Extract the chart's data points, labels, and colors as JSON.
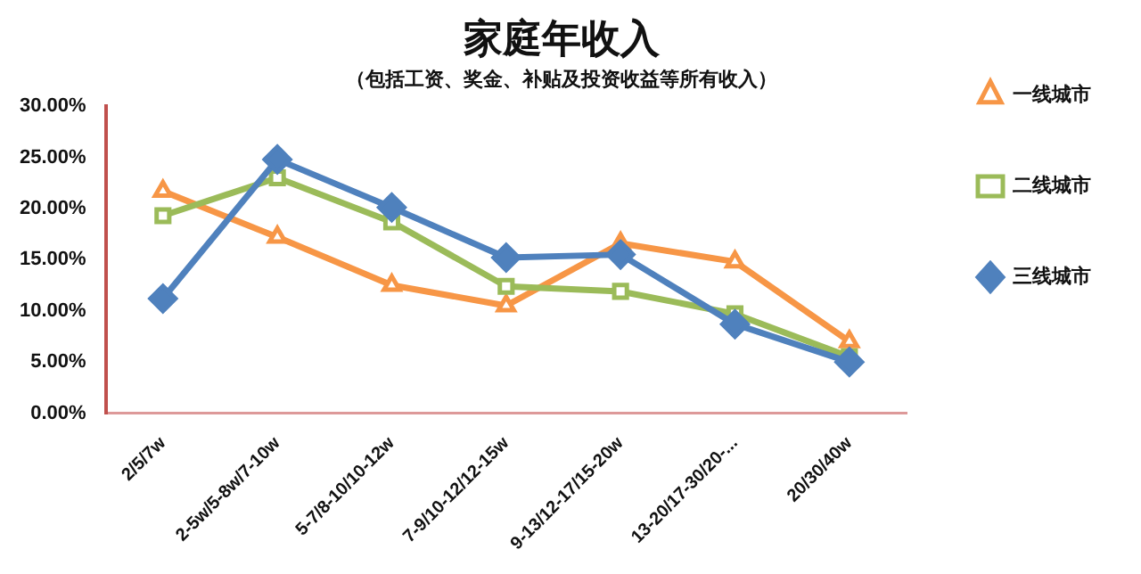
{
  "chart_data": {
    "type": "line",
    "title": "家庭年收入",
    "subtitle": "（包括工资、奖金、补贴及投资收益等所有收入）",
    "categories": [
      "2/5/7w",
      "2-5w/5-8w/7-10w",
      "5-7/8-10/10-12w",
      "7-9/10-12/12-15w",
      "9-13/12-17/15-20w",
      "13-20/17-30/20-...",
      "20/30/40w"
    ],
    "series": [
      {
        "name": "一线城市",
        "color": "#f79646",
        "marker": "triangle",
        "values": [
          21.7,
          17.2,
          12.5,
          10.5,
          16.6,
          14.8,
          7.0
        ]
      },
      {
        "name": "二线城市",
        "color": "#9bbb59",
        "marker": "square",
        "values": [
          19.3,
          23.0,
          18.7,
          12.4,
          11.9,
          9.7,
          5.5
        ]
      },
      {
        "name": "三线城市",
        "color": "#4f81bd",
        "marker": "diamond",
        "values": [
          11.2,
          24.8,
          20.1,
          15.2,
          15.5,
          8.7,
          5.0
        ]
      }
    ],
    "ylim": [
      0,
      30
    ],
    "yticks": [
      {
        "value": 0,
        "label": "0.00%"
      },
      {
        "value": 5,
        "label": "5.00%"
      },
      {
        "value": 10,
        "label": "10.00%"
      },
      {
        "value": 15,
        "label": "15.00%"
      },
      {
        "value": 20,
        "label": "20.00%"
      },
      {
        "value": 25,
        "label": "25.00%"
      },
      {
        "value": 30,
        "label": "30.00%"
      }
    ],
    "grid": false,
    "legend": "right"
  }
}
